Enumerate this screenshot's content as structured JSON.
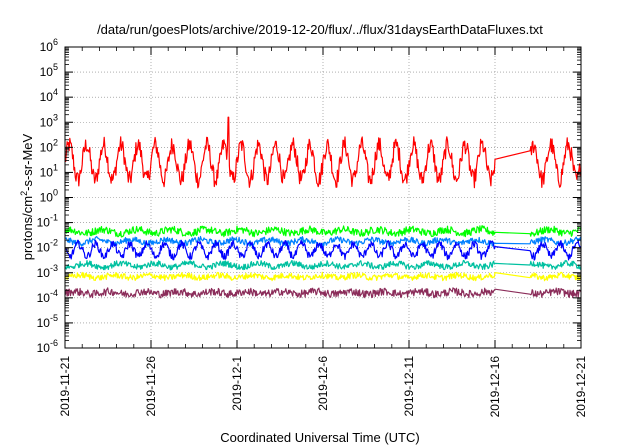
{
  "chart_data": {
    "type": "line",
    "title": "/data/run/goesPlots/archive/2019-12-20/flux/../flux/31daysEarthDataFluxes.txt",
    "xlabel": "Coordinated Universal Time (UTC)",
    "ylabel_parts": {
      "pre": "protons/cm",
      "sup": "2",
      "post": "-s-sr-MeV"
    },
    "yscale": "log",
    "ylim_exponents": [
      -6,
      6
    ],
    "y_tick_exponents": [
      -6,
      -5,
      -4,
      -3,
      -2,
      -1,
      0,
      1,
      2,
      3,
      4,
      5,
      6
    ],
    "x_ticks": [
      "2019-11-21",
      "2019-11-26",
      "2019-12-1",
      "2019-12-6",
      "2019-12-11",
      "2019-12-16",
      "2019-12-21"
    ],
    "xlim_days": [
      0,
      30
    ],
    "grid": true,
    "legend": "none",
    "data_gap_days": [
      25.0,
      27.0
    ],
    "series": [
      {
        "color": "#ff0000",
        "log_center": 1.4,
        "log_amplitude": 0.7,
        "log_noise": 0.35,
        "diurnal": true,
        "spike_day": 9.5,
        "spike_log_value": 3.2
      },
      {
        "color": "#00ff00",
        "log_center": -1.35,
        "log_amplitude": 0.15,
        "log_noise": 0.15,
        "diurnal": false
      },
      {
        "color": "#0080ff",
        "log_center": -1.75,
        "log_amplitude": 0.15,
        "log_noise": 0.12,
        "diurnal": false
      },
      {
        "color": "#0000ff",
        "log_center": -2.1,
        "log_amplitude": 0.25,
        "log_noise": 0.15,
        "diurnal": true
      },
      {
        "color": "#00c0a0",
        "log_center": -2.7,
        "log_amplitude": 0.15,
        "log_noise": 0.12,
        "diurnal": false
      },
      {
        "color": "#ffff00",
        "log_center": -3.15,
        "log_amplitude": 0.1,
        "log_noise": 0.12,
        "diurnal": false
      },
      {
        "color": "#8b2d5a",
        "log_center": -3.8,
        "log_amplitude": 0.1,
        "log_noise": 0.15,
        "diurnal": false
      }
    ]
  }
}
